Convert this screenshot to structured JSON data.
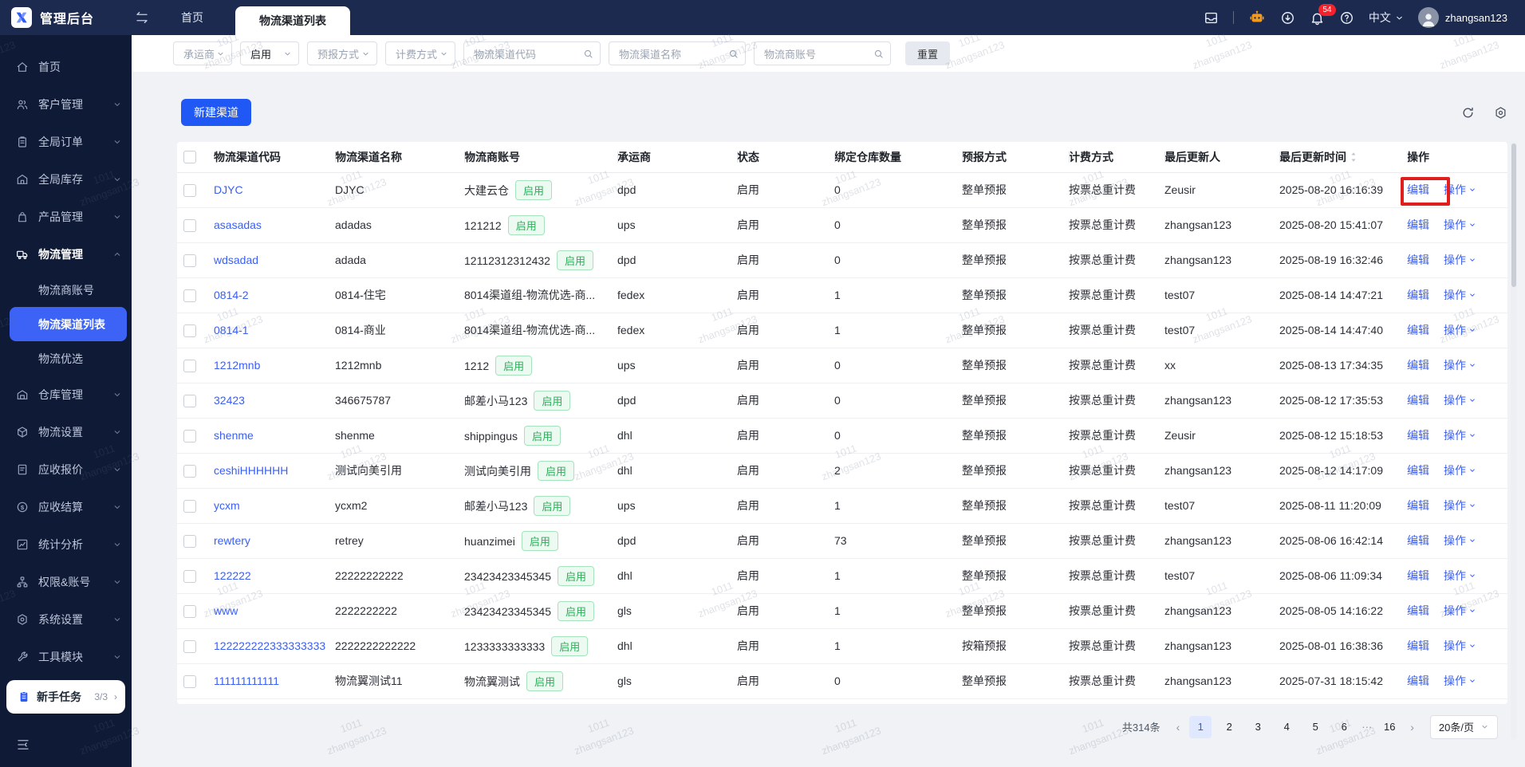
{
  "topbar": {
    "brand": "管理后台",
    "tabs": [
      {
        "label": "首页",
        "active": false
      },
      {
        "label": "物流渠道列表",
        "active": true
      }
    ],
    "notification_count": "54",
    "language": "中文",
    "username": "zhangsan123"
  },
  "sidebar": {
    "items": [
      {
        "label": "首页",
        "icon": "home-icon"
      },
      {
        "label": "客户管理",
        "icon": "users-icon",
        "chevron": "down"
      },
      {
        "label": "全局订单",
        "icon": "order-icon",
        "chevron": "down"
      },
      {
        "label": "全局库存",
        "icon": "inventory-icon",
        "chevron": "down"
      },
      {
        "label": "产品管理",
        "icon": "product-icon",
        "chevron": "down"
      },
      {
        "label": "物流管理",
        "icon": "truck-icon",
        "chevron": "up",
        "expanded": true,
        "children": [
          {
            "label": "物流商账号",
            "active": false
          },
          {
            "label": "物流渠道列表",
            "active": true
          },
          {
            "label": "物流优选",
            "active": false
          }
        ]
      },
      {
        "label": "仓库管理",
        "icon": "warehouse-icon",
        "chevron": "down"
      },
      {
        "label": "物流设置",
        "icon": "cube-icon",
        "chevron": "down"
      },
      {
        "label": "应收报价",
        "icon": "quote-icon",
        "chevron": "down"
      },
      {
        "label": "应收结算",
        "icon": "settlement-icon",
        "chevron": "down"
      },
      {
        "label": "统计分析",
        "icon": "chart-icon",
        "chevron": "down"
      },
      {
        "label": "权限&账号",
        "icon": "permission-icon",
        "chevron": "down"
      },
      {
        "label": "系统设置",
        "icon": "gear-icon",
        "chevron": "down"
      },
      {
        "label": "工具模块",
        "icon": "wrench-icon",
        "chevron": "down"
      }
    ],
    "task": {
      "label": "新手任务",
      "progress": "3/3",
      "icon": "task-icon"
    }
  },
  "filters": {
    "selects": [
      {
        "value": "承运商",
        "placeholder": true,
        "width": "sel-74"
      },
      {
        "value": "启用",
        "placeholder": false,
        "width": "sel-74"
      },
      {
        "value": "预报方式",
        "placeholder": true,
        "width": "sel-88"
      },
      {
        "value": "计费方式",
        "placeholder": true,
        "width": "sel-88"
      }
    ],
    "inputs": [
      {
        "placeholder": "物流渠道代码"
      },
      {
        "placeholder": "物流渠道名称"
      },
      {
        "placeholder": "物流商账号"
      }
    ],
    "reset_label": "重置"
  },
  "toolbar": {
    "new_channel_label": "新建渠道"
  },
  "table": {
    "columns": [
      {
        "key": "code",
        "label": "物流渠道代码"
      },
      {
        "key": "name",
        "label": "物流渠道名称"
      },
      {
        "key": "account",
        "label": "物流商账号"
      },
      {
        "key": "carrier",
        "label": "承运商"
      },
      {
        "key": "status",
        "label": "状态"
      },
      {
        "key": "warehouses",
        "label": "绑定仓库数量"
      },
      {
        "key": "forecast",
        "label": "预报方式"
      },
      {
        "key": "billing",
        "label": "计费方式"
      },
      {
        "key": "updater",
        "label": "最后更新人"
      },
      {
        "key": "updated",
        "label": "最后更新时间",
        "sortable": true
      },
      {
        "key": "actions",
        "label": "操作"
      }
    ],
    "enabled_badge": "启用",
    "edit_label": "编辑",
    "more_label": "操作",
    "rows": [
      {
        "code": "DJYC",
        "name": "DJYC",
        "account": "大建云仓",
        "account_badge": true,
        "carrier": "dpd",
        "status": "启用",
        "warehouses": "0",
        "forecast": "整单预报",
        "billing": "按票总重计费",
        "updater": "Zeusir",
        "updated": "2025-08-20 16:16:39",
        "highlight_edit": true
      },
      {
        "code": "asasadas",
        "name": "adadas",
        "account": "121212",
        "account_badge": true,
        "carrier": "ups",
        "status": "启用",
        "warehouses": "0",
        "forecast": "整单预报",
        "billing": "按票总重计费",
        "updater": "zhangsan123",
        "updated": "2025-08-20 15:41:07"
      },
      {
        "code": "wdsadad",
        "name": "adada",
        "account": "12112312312432",
        "account_badge": true,
        "carrier": "dpd",
        "status": "启用",
        "warehouses": "0",
        "forecast": "整单预报",
        "billing": "按票总重计费",
        "updater": "zhangsan123",
        "updated": "2025-08-19 16:32:46"
      },
      {
        "code": "0814-2",
        "name": "0814-住宅",
        "account": "8014渠道组-物流优选-商...",
        "account_badge": false,
        "carrier": "fedex",
        "status": "启用",
        "warehouses": "1",
        "forecast": "整单预报",
        "billing": "按票总重计费",
        "updater": "test07",
        "updated": "2025-08-14 14:47:21"
      },
      {
        "code": "0814-1",
        "name": "0814-商业",
        "account": "8014渠道组-物流优选-商...",
        "account_badge": false,
        "carrier": "fedex",
        "status": "启用",
        "warehouses": "1",
        "forecast": "整单预报",
        "billing": "按票总重计费",
        "updater": "test07",
        "updated": "2025-08-14 14:47:40"
      },
      {
        "code": "1212mnb",
        "name": "1212mnb",
        "account": "1212",
        "account_badge": true,
        "carrier": "ups",
        "status": "启用",
        "warehouses": "0",
        "forecast": "整单预报",
        "billing": "按票总重计费",
        "updater": "xx",
        "updated": "2025-08-13 17:34:35"
      },
      {
        "code": "32423",
        "name": "346675787",
        "account": "邮差小马123",
        "account_badge": true,
        "carrier": "dpd",
        "status": "启用",
        "warehouses": "0",
        "forecast": "整单预报",
        "billing": "按票总重计费",
        "updater": "zhangsan123",
        "updated": "2025-08-12 17:35:53"
      },
      {
        "code": "shenme",
        "name": "shenme",
        "account": "shippingus",
        "account_badge": true,
        "carrier": "dhl",
        "status": "启用",
        "warehouses": "0",
        "forecast": "整单预报",
        "billing": "按票总重计费",
        "updater": "Zeusir",
        "updated": "2025-08-12 15:18:53"
      },
      {
        "code": "ceshiHHHHHH",
        "name": "测试向美引用",
        "account": "测试向美引用",
        "account_badge": true,
        "carrier": "dhl",
        "status": "启用",
        "warehouses": "2",
        "forecast": "整单预报",
        "billing": "按票总重计费",
        "updater": "zhangsan123",
        "updated": "2025-08-12 14:17:09"
      },
      {
        "code": "ycxm",
        "name": "ycxm2",
        "account": "邮差小马123",
        "account_badge": true,
        "carrier": "ups",
        "status": "启用",
        "warehouses": "1",
        "forecast": "整单预报",
        "billing": "按票总重计费",
        "updater": "test07",
        "updated": "2025-08-11 11:20:09"
      },
      {
        "code": "rewtery",
        "name": "retrey",
        "account": "huanzimei",
        "account_badge": true,
        "carrier": "dpd",
        "status": "启用",
        "warehouses": "73",
        "forecast": "整单预报",
        "billing": "按票总重计费",
        "updater": "zhangsan123",
        "updated": "2025-08-06 16:42:14"
      },
      {
        "code": "122222",
        "name": "22222222222",
        "account": "23423423345345",
        "account_badge": true,
        "carrier": "dhl",
        "status": "启用",
        "warehouses": "1",
        "forecast": "整单预报",
        "billing": "按票总重计费",
        "updater": "test07",
        "updated": "2025-08-06 11:09:34"
      },
      {
        "code": "www",
        "name": "2222222222",
        "account": "23423423345345",
        "account_badge": true,
        "carrier": "gls",
        "status": "启用",
        "warehouses": "1",
        "forecast": "整单预报",
        "billing": "按票总重计费",
        "updater": "zhangsan123",
        "updated": "2025-08-05 14:16:22"
      },
      {
        "code": "122222222333333333",
        "name": "2222222222222",
        "account": "1233333333333",
        "account_badge": true,
        "carrier": "dhl",
        "status": "启用",
        "warehouses": "1",
        "forecast": "按箱预报",
        "billing": "按票总重计费",
        "updater": "zhangsan123",
        "updated": "2025-08-01 16:38:36"
      },
      {
        "code": "111111111111",
        "name": "物流翼测试11",
        "account": "物流翼测试",
        "account_badge": true,
        "carrier": "gls",
        "status": "启用",
        "warehouses": "0",
        "forecast": "整单预报",
        "billing": "按票总重计费",
        "updater": "zhangsan123",
        "updated": "2025-07-31 18:15:42"
      }
    ]
  },
  "pagination": {
    "total": "共314条",
    "pages": [
      "1",
      "2",
      "3",
      "4",
      "5",
      "6",
      "···",
      "16"
    ],
    "active_page": "1",
    "page_size": "20条/页"
  },
  "watermark": {
    "line1": "1011",
    "line2": "zhangsan123"
  },
  "annotation_color": "#e01e1e"
}
